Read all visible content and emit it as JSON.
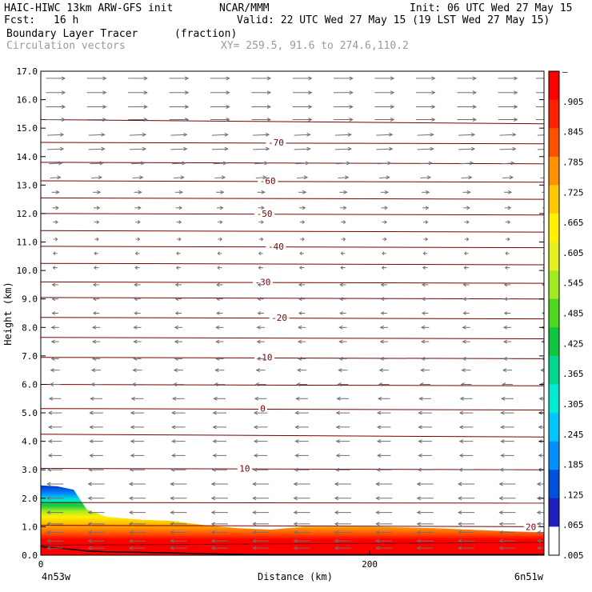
{
  "header": {
    "model_title": "HAIC-HIWC 13km ARW-GFS init",
    "org": "NCAR/MMM",
    "init": "Init: 06 UTC Wed 27 May 15",
    "fcst_label": "Fcst:",
    "fcst_value": "16 h",
    "valid": "Valid: 22 UTC Wed 27 May 15 (19 LST Wed 27 May 15)",
    "field_name": "Boundary Layer Tracer",
    "field_unit": "(fraction)",
    "vector_label": "Circulation vectors",
    "cross_section": "XY= 259.5, 91.6 to 274.6,110.2"
  },
  "chart_data": {
    "type": "heatmap",
    "xlabel": "Distance (km)",
    "ylabel": "Height (km)",
    "xlim": [
      0,
      306
    ],
    "ylim": [
      0,
      17
    ],
    "x_ticks": [
      {
        "value": 0,
        "label": "0"
      },
      {
        "value": 200,
        "label": "200"
      }
    ],
    "x_end_labels": {
      "left": "4n53w",
      "right": "6n51w"
    },
    "y_ticks": [
      "0.0",
      "1.0",
      "2.0",
      "3.0",
      "4.0",
      "5.0",
      "6.0",
      "7.0",
      "8.0",
      "9.0",
      "10.0",
      "11.0",
      "12.0",
      "13.0",
      "14.0",
      "15.0",
      "16.0",
      "17.0"
    ],
    "colorbar": {
      "labels": [
        "–",
        ".905",
        ".845",
        ".785",
        ".725",
        ".665",
        ".605",
        ".545",
        ".485",
        ".425",
        ".365",
        ".305",
        ".245",
        ".185",
        ".125",
        ".065",
        ".005"
      ],
      "colors": [
        "#ffffff",
        "#2020c0",
        "#0050e0",
        "#0090ff",
        "#00c8ff",
        "#00ecd0",
        "#00d890",
        "#10c840",
        "#50d820",
        "#a0ec20",
        "#e4f020",
        "#fff000",
        "#ffc800",
        "#ff9000",
        "#ff5000",
        "#ff2000",
        "#ff0000"
      ]
    },
    "tracer_profile": {
      "x": [
        0,
        10,
        20,
        28,
        40,
        60,
        80,
        100,
        120,
        140,
        160,
        200,
        240,
        280,
        306
      ],
      "top": [
        2.45,
        2.42,
        2.3,
        1.6,
        1.35,
        1.25,
        1.2,
        1.05,
        0.95,
        0.9,
        1.0,
        1.0,
        0.95,
        0.85,
        0.8
      ],
      "surface": [
        0.3,
        0.25,
        0.2,
        0.15,
        0.12,
        0.1,
        0.08,
        0.05,
        0.03,
        0.02,
        0.02,
        0.02,
        0.02,
        0.02,
        0.02
      ]
    },
    "contour_lines": {
      "y_levels": [
        0.35,
        1.05,
        1.85,
        3.05,
        4.25,
        5.15,
        6.0,
        6.95,
        7.65,
        8.35,
        9.05,
        9.6,
        10.25,
        10.85,
        11.4,
        12.0,
        12.55,
        13.15,
        13.8,
        14.5,
        15.3
      ],
      "slope": [
        0.1,
        -0.05,
        -0.02,
        -0.05,
        -0.1,
        -0.05,
        -0.05,
        -0.05,
        -0.05,
        -0.05,
        -0.05,
        -0.05,
        -0.05,
        -0.05,
        -0.05,
        -0.05,
        -0.05,
        -0.05,
        -0.05,
        -0.05,
        -0.15
      ]
    },
    "contour_labels": [
      {
        "text": "-70",
        "x": 143,
        "y": 14.5
      },
      {
        "text": "-60",
        "x": 138,
        "y": 13.15
      },
      {
        "text": "-50",
        "x": 136,
        "y": 12.0
      },
      {
        "text": "-40",
        "x": 143,
        "y": 10.85
      },
      {
        "text": "-30",
        "x": 135,
        "y": 9.6
      },
      {
        "text": "-20",
        "x": 145,
        "y": 8.35
      },
      {
        "text": "-10",
        "x": 136,
        "y": 6.95
      },
      {
        "text": "0",
        "x": 135,
        "y": 5.15
      },
      {
        "text": "10",
        "x": 124,
        "y": 3.05
      },
      {
        "text": "20",
        "x": 298,
        "y": 1.0
      }
    ],
    "vectors": {
      "x_positions": [
        4,
        29,
        54,
        79,
        104,
        129,
        154,
        179,
        204,
        229,
        254,
        279,
        302
      ],
      "levels": [
        {
          "y": 16.75,
          "u": 6,
          "w": 0
        },
        {
          "y": 16.25,
          "u": 6,
          "w": 0
        },
        {
          "y": 15.75,
          "u": 6,
          "w": 0
        },
        {
          "y": 15.3,
          "u": 6,
          "w": 0
        },
        {
          "y": 14.75,
          "u": 5,
          "w": 0.1
        },
        {
          "y": 14.25,
          "u": 5,
          "w": 0.1
        },
        {
          "y": 13.75,
          "u": 4,
          "w": 0.1
        },
        {
          "y": 13.25,
          "u": 3,
          "w": 0.1
        },
        {
          "y": 12.75,
          "u": 2,
          "w": 0
        },
        {
          "y": 12.2,
          "u": 1.5,
          "w": 0
        },
        {
          "y": 11.7,
          "u": 1,
          "w": 0
        },
        {
          "y": 11.1,
          "u": 0.8,
          "w": 0
        },
        {
          "y": 10.6,
          "u": -0.8,
          "w": 0
        },
        {
          "y": 10.1,
          "u": -1,
          "w": 0
        },
        {
          "y": 9.5,
          "u": -1.5,
          "w": 0
        },
        {
          "y": 9.0,
          "u": -1.5,
          "w": 0
        },
        {
          "y": 8.5,
          "u": -1.5,
          "w": 0
        },
        {
          "y": 8.0,
          "u": -2,
          "w": 0
        },
        {
          "y": 7.5,
          "u": -2,
          "w": 0
        },
        {
          "y": 6.9,
          "u": -2,
          "w": 0
        },
        {
          "y": 6.5,
          "u": -2.5,
          "w": 0
        },
        {
          "y": 6.0,
          "u": -3,
          "w": 0
        },
        {
          "y": 5.5,
          "u": -3.5,
          "w": 0
        },
        {
          "y": 5.0,
          "u": -4,
          "w": 0
        },
        {
          "y": 4.5,
          "u": -4,
          "w": 0
        },
        {
          "y": 4.0,
          "u": -4,
          "w": 0
        },
        {
          "y": 3.5,
          "u": -4,
          "w": 0
        },
        {
          "y": 3.0,
          "u": -4.5,
          "w": 0
        },
        {
          "y": 2.5,
          "u": -5,
          "w": 0
        },
        {
          "y": 2.0,
          "u": -5,
          "w": 0
        },
        {
          "y": 1.5,
          "u": -5,
          "w": 0
        },
        {
          "y": 1.1,
          "u": -5,
          "w": 0
        },
        {
          "y": 0.8,
          "u": -5,
          "w": 0
        },
        {
          "y": 0.5,
          "u": -5,
          "w": 0
        },
        {
          "y": 0.25,
          "u": -5,
          "w": 0
        }
      ]
    }
  },
  "colors": {
    "contour": "#7a0000",
    "vector": "#707070",
    "frame": "#000000",
    "header_gray": "#9a9a9a"
  }
}
